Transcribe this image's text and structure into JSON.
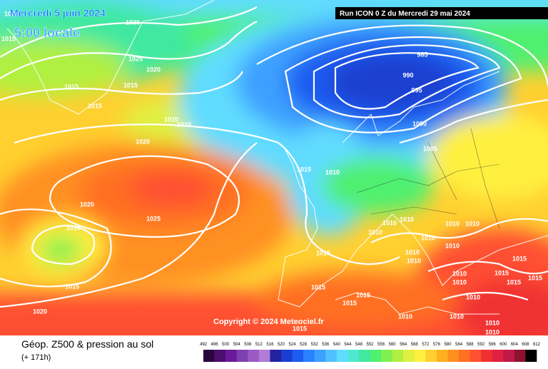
{
  "header": {
    "date": "Mercredi 5 juin 2024",
    "time": "5:00 locale",
    "run": "Run ICON 0 Z du Mercredi 29 mai 2024"
  },
  "copyright": "Copyright © 2024 Meteociel.fr",
  "footer": {
    "title": "Géop. Z500 & pression au sol",
    "lead": "(+ 171h)"
  },
  "isobar_labels": [
    1030,
    1015,
    1025,
    1020,
    1015,
    1015,
    1015,
    1010,
    1010,
    1020,
    985,
    990,
    995,
    1000,
    1005,
    1015,
    1010,
    1020,
    1025,
    1010,
    1015,
    1015,
    1015,
    1020,
    1015,
    1015,
    1010,
    1010,
    1010,
    1010,
    1010,
    1010,
    1010,
    1010,
    1010,
    1010,
    1010,
    1015,
    1015,
    1015,
    1015,
    1010,
    1010,
    1010,
    1010,
    1010,
    1015,
    1020
  ],
  "scale": {
    "ticks": [
      492,
      496,
      500,
      504,
      508,
      512,
      516,
      520,
      524,
      528,
      532,
      536,
      540,
      544,
      548,
      552,
      556,
      560,
      564,
      568,
      572,
      576,
      580,
      584,
      588,
      592,
      596,
      600,
      604,
      608,
      612
    ],
    "colors": [
      "#2a0540",
      "#4b0f6e",
      "#6a1b9a",
      "#7e3fb0",
      "#9b59c4",
      "#b07cd6",
      "#2323a0",
      "#1a3fd0",
      "#1e5cf0",
      "#2a80ff",
      "#3ca0ff",
      "#50c0ff",
      "#60dcff",
      "#4ee8d0",
      "#40e8a0",
      "#50f070",
      "#80f050",
      "#b0f040",
      "#e0f040",
      "#fff040",
      "#ffd030",
      "#ffb020",
      "#ff9020",
      "#ff7020",
      "#ff5030",
      "#f03030",
      "#e02040",
      "#c01848",
      "#901030",
      "#000000"
    ]
  }
}
